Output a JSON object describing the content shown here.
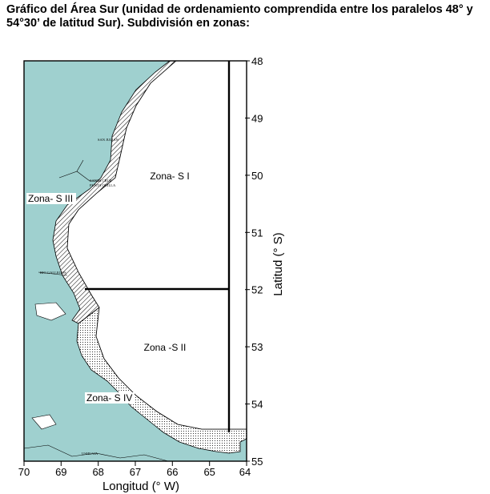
{
  "title": "Gráfico del Área Sur (unidad de ordenamiento comprendida entre los paralelos 48° y 54°30’ de latitud Sur). Subdivisión en zonas:",
  "map": {
    "xlabel": "Longitud (° W)",
    "ylabel": "Latitud (° S)",
    "x_ticks": [
      "70",
      "69",
      "68",
      "67",
      "66",
      "65",
      "64"
    ],
    "y_ticks": [
      "48",
      "49",
      "50",
      "51",
      "52",
      "53",
      "54",
      "55"
    ],
    "zones": [
      "Zona- S I",
      "Zona -S II",
      "Zona- S III",
      "Zona- S IV"
    ],
    "places": [
      "SAN JULIAN",
      "SANTA CRUZ",
      "PUNTA QUILLA",
      "RIO GALLEGOS",
      "USHUAIA"
    ],
    "colors": {
      "land": "#9fd0cf",
      "sea": "#ffffff",
      "boundary": "#000000"
    }
  }
}
